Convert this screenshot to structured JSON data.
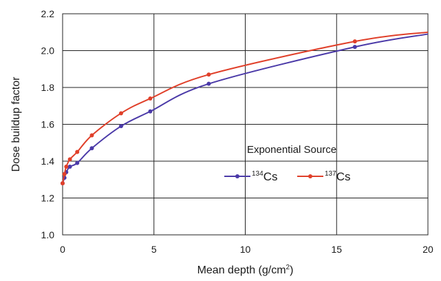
{
  "chart_data": {
    "type": "line",
    "title": "",
    "xlabel": "Mean depth (g/cm",
    "xlabel_sup": "2",
    "xlabel_tail": ")",
    "ylabel": "Dose buildup factor",
    "xlim": [
      0,
      20
    ],
    "ylim": [
      1.0,
      2.2
    ],
    "xticks": [
      0,
      5,
      10,
      15,
      20
    ],
    "yticks": [
      1.0,
      1.2,
      1.4,
      1.6,
      1.8,
      2.0,
      2.2
    ],
    "ytick_labels": [
      "1.0",
      "1.2",
      "1.4",
      "1.6",
      "1.8",
      "2.0",
      "2.2"
    ],
    "grid": true,
    "legend": {
      "title": "Exponential Source",
      "placement": "center-right"
    },
    "series": [
      {
        "name": "Cs",
        "superscript": "134",
        "color": "#4b3aa8",
        "x": [
          0,
          0.1,
          0.2,
          0.4,
          0.8,
          1.6,
          3.2,
          4.8,
          8.0,
          16.0
        ],
        "y": [
          1.28,
          1.31,
          1.34,
          1.37,
          1.39,
          1.47,
          1.59,
          1.67,
          1.82,
          2.02
        ],
        "end": [
          20,
          2.09
        ]
      },
      {
        "name": "Cs",
        "superscript": "137",
        "color": "#e0402a",
        "x": [
          0,
          0.1,
          0.2,
          0.4,
          0.8,
          1.6,
          3.2,
          4.8,
          8.0,
          16.0
        ],
        "y": [
          1.28,
          1.33,
          1.37,
          1.41,
          1.45,
          1.54,
          1.66,
          1.74,
          1.87,
          2.05
        ],
        "end": [
          20,
          2.1
        ]
      }
    ]
  }
}
